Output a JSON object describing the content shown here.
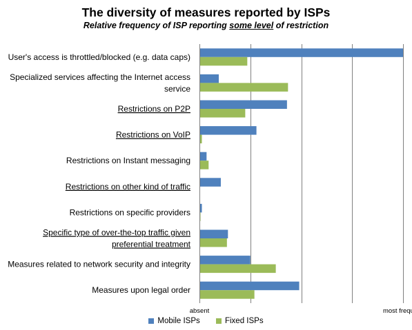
{
  "chart_data": {
    "type": "bar",
    "orientation": "horizontal",
    "title": "The diversity of measures reported by ISPs",
    "subtitle": {
      "before": "Relative frequency of ISP reporting ",
      "emphasis": "some level",
      "after": " of restriction"
    },
    "categories": [
      {
        "lines": [
          "User's access is throttled/blocked (e.g. data caps)"
        ],
        "underlined": false
      },
      {
        "lines": [
          "Specialized services affecting the Internet access",
          "service"
        ],
        "underlined": false
      },
      {
        "lines": [
          "Restrictions on P2P"
        ],
        "underlined": true
      },
      {
        "lines": [
          "Restrictions on VoIP"
        ],
        "underlined": true
      },
      {
        "lines": [
          "Restrictions on Instant messaging"
        ],
        "underlined": false
      },
      {
        "lines": [
          "Restrictions on other kind of traffic"
        ],
        "underlined": true
      },
      {
        "lines": [
          "Restrictions on specific providers"
        ],
        "underlined": false
      },
      {
        "lines": [
          "Specific type of over-the-top traffic given",
          "preferential treatment"
        ],
        "underlined": true
      },
      {
        "lines": [
          "Measures related to network security and integrity"
        ],
        "underlined": false
      },
      {
        "lines": [
          "Measures upon legal order"
        ],
        "underlined": false
      }
    ],
    "series": [
      {
        "name": "Mobile ISPs",
        "color": "#4F81BD",
        "values": [
          1.0,
          0.095,
          0.43,
          0.28,
          0.035,
          0.105,
          0.012,
          0.14,
          0.25,
          0.49
        ]
      },
      {
        "name": "Fixed ISPs",
        "color": "#9BBB59",
        "values": [
          0.235,
          0.435,
          0.225,
          0.012,
          0.045,
          0.0,
          0.005,
          0.135,
          0.375,
          0.27
        ]
      }
    ],
    "xlim": [
      0,
      1
    ],
    "x_gridlines": [
      0,
      0.25,
      0.5,
      0.75,
      1.0
    ],
    "x_tick_labels": [
      {
        "value": 0,
        "label": "absent"
      },
      {
        "value": 1.0,
        "label": "most frequent"
      }
    ],
    "grid": true,
    "gridline_color": "#7f7f7f",
    "legend_position": "bottom"
  }
}
